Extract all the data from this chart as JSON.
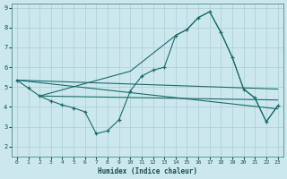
{
  "background_color": "#cce8ec",
  "grid_color": "#aacdd4",
  "line_color": "#1a6b6b",
  "xlabel": "Humidex (Indice chaleur)",
  "xlim": [
    -0.5,
    23.5
  ],
  "ylim": [
    1.5,
    9.2
  ],
  "yticks": [
    2,
    3,
    4,
    5,
    6,
    7,
    8,
    9
  ],
  "xticks": [
    0,
    1,
    2,
    3,
    4,
    5,
    6,
    7,
    8,
    9,
    10,
    11,
    12,
    13,
    14,
    15,
    16,
    17,
    18,
    19,
    20,
    21,
    22,
    23
  ],
  "series": [
    {
      "x": [
        0,
        1,
        2,
        3,
        4,
        5,
        6,
        7,
        8,
        9,
        10,
        11,
        12,
        13,
        14,
        15,
        16,
        17,
        18,
        19,
        20,
        21,
        22,
        23
      ],
      "y": [
        5.35,
        4.95,
        4.55,
        4.3,
        4.1,
        3.95,
        3.75,
        2.65,
        2.8,
        3.35,
        4.8,
        5.55,
        5.85,
        6.0,
        7.6,
        7.9,
        8.5,
        8.8,
        7.75,
        6.5,
        4.9,
        4.45,
        3.25,
        4.05
      ],
      "marker": true
    },
    {
      "x": [
        2,
        10,
        14,
        15,
        16,
        17,
        18,
        19,
        20,
        21,
        22,
        23
      ],
      "y": [
        4.55,
        5.8,
        7.6,
        7.9,
        8.5,
        8.8,
        7.75,
        6.5,
        4.9,
        4.45,
        3.25,
        4.05
      ],
      "marker": false
    },
    {
      "x": [
        0,
        23
      ],
      "y": [
        5.35,
        4.9
      ],
      "marker": false
    },
    {
      "x": [
        2,
        23
      ],
      "y": [
        4.55,
        4.35
      ],
      "marker": false
    },
    {
      "x": [
        0,
        23
      ],
      "y": [
        5.35,
        3.9
      ],
      "marker": false
    }
  ]
}
